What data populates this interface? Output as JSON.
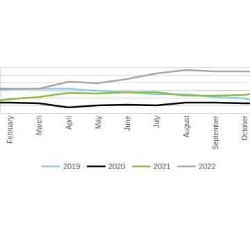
{
  "chart_data": {
    "type": "line",
    "categories": [
      null,
      "February",
      "March",
      "April",
      "May",
      "June",
      "July",
      "August",
      "September",
      "October",
      null
    ],
    "series": [
      {
        "name": "2019",
        "color": "#86cfe0",
        "values": [
          2.91,
          3.09,
          3.18,
          3.18,
          2.91,
          2.73,
          2.45,
          2.45,
          2.09,
          1.91,
          1.18
        ]
      },
      {
        "name": "2020",
        "color": "#000000",
        "values": [
          1.36,
          1.36,
          1.27,
          0.73,
          1.0,
          1.09,
          1.0,
          1.36,
          1.36,
          1.27,
          1.27
        ]
      },
      {
        "name": "2021",
        "color": "#8db843",
        "values": [
          1.36,
          1.82,
          2.09,
          2.64,
          2.55,
          2.73,
          2.73,
          2.27,
          2.27,
          2.36,
          3.0
        ]
      },
      {
        "name": "2022",
        "color": "#a6a6a6",
        "values": [
          3.27,
          3.18,
          3.18,
          4.09,
          3.91,
          4.45,
          5.18,
          5.64,
          5.45,
          5.45,
          5.36
        ]
      }
    ],
    "ylim": [
      0,
      6
    ],
    "yticks": [
      0,
      1,
      2,
      3,
      4,
      5,
      6
    ],
    "grid": true,
    "legend": "bottom",
    "tick_labels": "x"
  }
}
